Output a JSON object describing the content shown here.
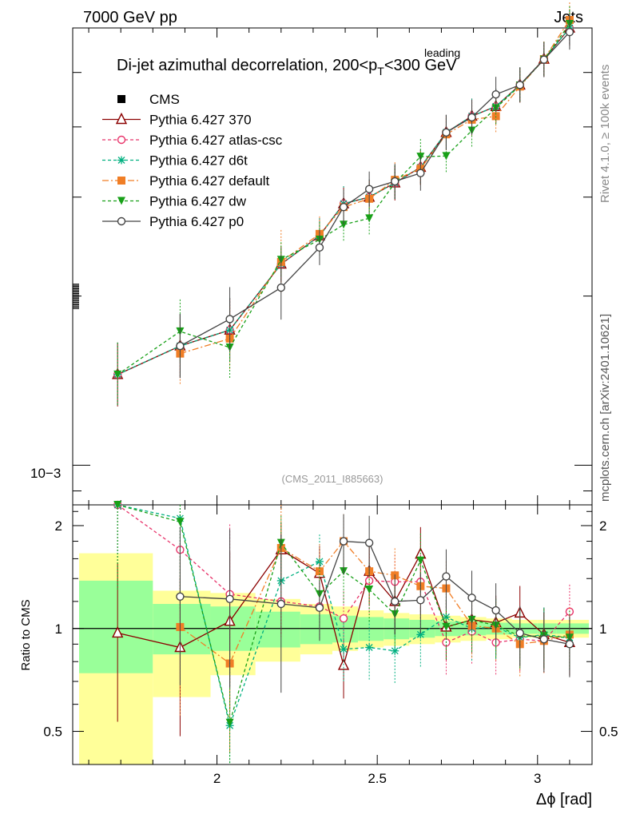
{
  "header": {
    "left": "7000 GeV pp",
    "right": "Jets"
  },
  "side_text": {
    "rivet": "Rivet 4.1.0, ≥ 100k events",
    "site": "mcplots.cern.ch [arXiv:2401.10621]"
  },
  "chart_data": {
    "type": "line",
    "title_prefix": "Di-jet azimuthal decorrelation, 200<p",
    "title_sup": "leading",
    "title_sub": "T",
    "title_suffix": "<300 GeV",
    "analysis_id": "(CMS_2011_I885663)",
    "xlabel": "Δϕ [rad]",
    "ylabel_ratio": "Ratio to CMS",
    "xlim": [
      1.55,
      3.17
    ],
    "ylim_main": [
      0.00085,
      0.006
    ],
    "ylim_ratio": [
      0.4,
      2.3
    ],
    "main_yscale": "log",
    "main_ytick_label": "10−3",
    "xticks": [
      "2",
      "2.5",
      "3"
    ],
    "ratio_yticks": [
      "0.5",
      "1",
      "2"
    ],
    "ratio_band_edges": [
      1.57,
      1.8,
      1.98,
      2.12,
      2.26,
      2.36,
      2.44,
      2.52,
      2.6,
      2.68,
      2.76,
      2.84,
      2.92,
      3.0,
      3.06,
      3.16
    ],
    "ratio_band_inner": [
      [
        0.74,
        1.38
      ],
      [
        0.84,
        1.18
      ],
      [
        0.86,
        1.16
      ],
      [
        0.88,
        1.12
      ],
      [
        0.9,
        1.1
      ],
      [
        0.91,
        1.09
      ],
      [
        0.92,
        1.08
      ],
      [
        0.93,
        1.07
      ],
      [
        0.94,
        1.06
      ],
      [
        0.95,
        1.05
      ],
      [
        0.955,
        1.045
      ],
      [
        0.96,
        1.04
      ],
      [
        0.965,
        1.035
      ],
      [
        0.965,
        1.035
      ],
      [
        0.965,
        1.035
      ]
    ],
    "ratio_band_outer": [
      [
        0.4,
        1.66
      ],
      [
        0.63,
        1.29
      ],
      [
        0.73,
        1.27
      ],
      [
        0.8,
        1.22
      ],
      [
        0.84,
        1.18
      ],
      [
        0.86,
        1.16
      ],
      [
        0.88,
        1.13
      ],
      [
        0.89,
        1.11
      ],
      [
        0.9,
        1.1
      ],
      [
        0.91,
        1.09
      ],
      [
        0.92,
        1.08
      ],
      [
        0.93,
        1.07
      ],
      [
        0.94,
        1.06
      ],
      [
        0.94,
        1.06
      ],
      [
        0.94,
        1.06
      ]
    ],
    "series": [
      {
        "name": "CMS",
        "color": "#000000",
        "marker": "square",
        "dash": "",
        "x": [],
        "y": [],
        "ratio": []
      },
      {
        "name": "Pythia 6.427 370",
        "color": "#8b0000",
        "marker": "triangle-open",
        "dash": "",
        "x": [
          1.69,
          1.885,
          2.04,
          2.2,
          2.32,
          2.395,
          2.475,
          2.555,
          2.635,
          2.715,
          2.795,
          2.87,
          2.945,
          3.02,
          3.1
        ],
        "y": [
          0.00145,
          0.00163,
          0.00174,
          0.00228,
          0.00256,
          0.00292,
          0.003,
          0.00318,
          0.00339,
          0.00391,
          0.00418,
          0.00435,
          0.00475,
          0.00528,
          0.006
        ],
        "ratio": [
          0.97,
          0.88,
          1.05,
          1.7,
          1.45,
          0.78,
          1.47,
          1.2,
          1.65,
          1.01,
          1.06,
          1.04,
          1.11,
          0.96,
          0.91
        ]
      },
      {
        "name": "Pythia 6.427 atlas-csc",
        "color": "#e8336a",
        "marker": "circle-open",
        "dash": "4,3",
        "x": [
          1.69,
          1.885,
          2.04,
          2.2,
          2.32,
          2.395,
          2.475,
          2.555,
          2.635,
          2.715,
          2.795,
          2.87,
          2.945,
          3.02,
          3.1
        ],
        "y": [
          0.00145,
          0.00163,
          0.00174,
          0.00228,
          0.00256,
          0.00292,
          0.003,
          0.00318,
          0.00339,
          0.00391,
          0.00418,
          0.00435,
          0.00475,
          0.00528,
          0.006
        ],
        "ratio": [
          2.4,
          1.7,
          1.26,
          1.2,
          1.16,
          1.07,
          1.38,
          1.37,
          1.37,
          0.91,
          0.98,
          0.91,
          0.93,
          0.92,
          1.12
        ]
      },
      {
        "name": "Pythia 6.427 d6t",
        "color": "#00b080",
        "marker": "asterisk",
        "dash": "4,3",
        "x": [
          1.69,
          1.885,
          2.04,
          2.2,
          2.32,
          2.395,
          2.475,
          2.555,
          2.635,
          2.715,
          2.795,
          2.87,
          2.945,
          3.02,
          3.1
        ],
        "y": [
          0.00145,
          0.00163,
          0.00174,
          0.00228,
          0.00256,
          0.00292,
          0.003,
          0.00318,
          0.00339,
          0.00391,
          0.00418,
          0.00435,
          0.00475,
          0.00528,
          0.006
        ],
        "ratio": [
          2.4,
          2.1,
          0.52,
          1.38,
          1.57,
          0.87,
          0.88,
          0.86,
          0.96,
          1.08,
          1.0,
          1.01,
          0.94,
          0.96,
          0.94
        ]
      },
      {
        "name": "Pythia 6.427 default",
        "color": "#f07e26",
        "marker": "square",
        "dash": "8,3,2,3",
        "x": [
          1.885,
          2.04,
          2.2,
          2.32,
          2.395,
          2.475,
          2.555,
          2.635,
          2.715,
          2.795,
          2.87,
          2.945,
          3.02,
          3.1
        ],
        "y": [
          0.00158,
          0.00168,
          0.0023,
          0.00258,
          0.00288,
          0.00298,
          0.00322,
          0.00337,
          0.00388,
          0.00412,
          0.00418,
          0.00472,
          0.00528,
          0.0062
        ],
        "ratio": [
          1.01,
          0.79,
          1.72,
          1.47,
          1.8,
          1.47,
          1.43,
          1.33,
          1.31,
          1.02,
          1.0,
          0.9,
          0.92,
          0.96
        ]
      },
      {
        "name": "Pythia 6.427 dw",
        "color": "#18a018",
        "marker": "triangle-down",
        "dash": "4,3",
        "x": [
          1.69,
          1.885,
          2.04,
          2.2,
          2.32,
          2.395,
          2.475,
          2.555,
          2.635,
          2.715,
          2.795,
          2.87,
          2.945,
          3.02,
          3.1
        ],
        "y": [
          0.00145,
          0.00173,
          0.00162,
          0.00232,
          0.00252,
          0.00268,
          0.00275,
          0.00318,
          0.00354,
          0.00355,
          0.00394,
          0.00432,
          0.00474,
          0.00527,
          0.0061
        ],
        "ratio": [
          2.35,
          2.05,
          0.53,
          1.78,
          1.26,
          1.47,
          1.3,
          1.1,
          1.58,
          1.01,
          1.06,
          1.02,
          0.95,
          0.95,
          0.94
        ]
      },
      {
        "name": "Pythia 6.427 p0",
        "color": "#444444",
        "marker": "circle-open",
        "dash": "",
        "x": [
          1.885,
          2.04,
          2.2,
          2.32,
          2.395,
          2.475,
          2.555,
          2.635,
          2.715,
          2.795,
          2.87,
          2.945,
          3.02,
          3.1
        ],
        "y": [
          0.00163,
          0.00182,
          0.00207,
          0.00244,
          0.00288,
          0.0031,
          0.0032,
          0.00331,
          0.00391,
          0.00416,
          0.00457,
          0.00475,
          0.00527,
          0.0059
        ],
        "ratio": [
          1.24,
          1.22,
          1.18,
          1.15,
          1.8,
          1.78,
          1.2,
          1.21,
          1.42,
          1.23,
          1.13,
          0.97,
          0.93,
          0.9
        ]
      }
    ]
  }
}
